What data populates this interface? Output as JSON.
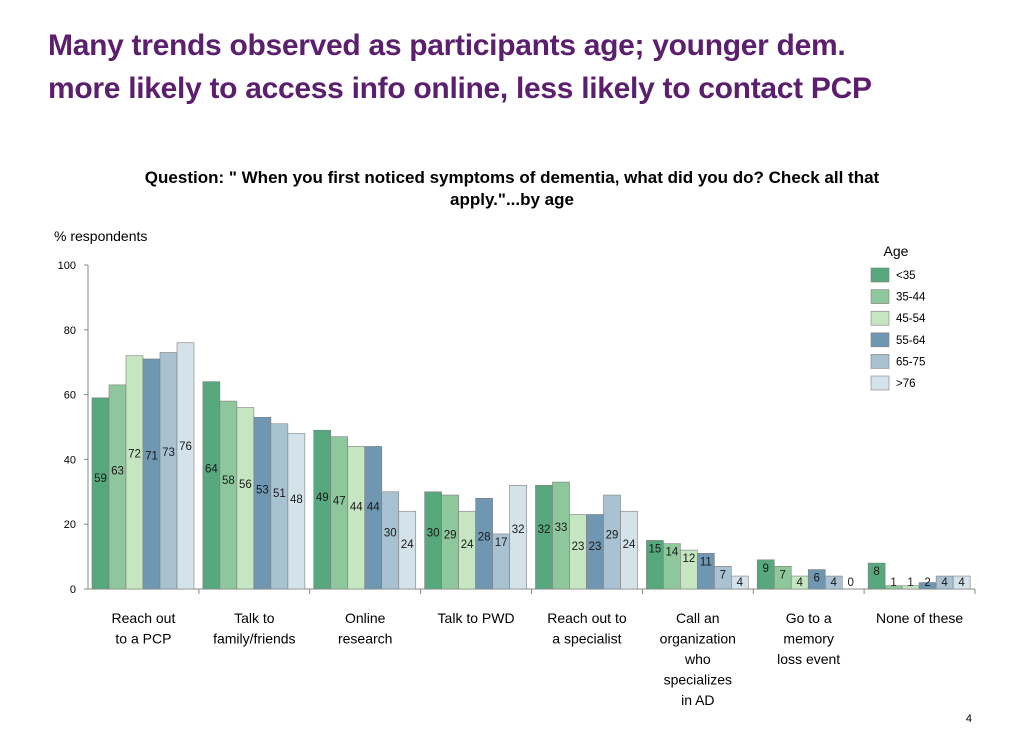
{
  "slide": {
    "title_line1": "Many trends observed as participants age; younger dem.",
    "title_line2": "more likely to access info online, less likely to contact PCP",
    "page_number": "4"
  },
  "chart_data": {
    "type": "bar",
    "title": "Question: \" When you first noticed symptoms of dementia, what did you do? Check all that apply.\"...by age",
    "title_lines": [
      "Question: \" When you first noticed symptoms of dementia, what did you do? Check all that",
      "apply.\"...by age"
    ],
    "ylabel": "% respondents",
    "ylim": [
      0,
      100
    ],
    "yticks": [
      0,
      20,
      40,
      60,
      80,
      100
    ],
    "legend_title": "Age",
    "legend_position": "top-right",
    "categories": [
      [
        "Reach out",
        "to a PCP"
      ],
      [
        "Talk to",
        "family/friends"
      ],
      [
        "Online",
        "research"
      ],
      [
        "Talk to PWD"
      ],
      [
        "Reach out to",
        "a specialist"
      ],
      [
        "Call an",
        "organization",
        "who",
        "specializes",
        "in AD"
      ],
      [
        "Go to a",
        "memory",
        "loss event"
      ],
      [
        "None of these"
      ]
    ],
    "series": [
      {
        "name": "<35",
        "color": "#57a87c",
        "values": [
          59,
          64,
          49,
          30,
          32,
          15,
          9,
          8
        ]
      },
      {
        "name": "35-44",
        "color": "#8fc79c",
        "values": [
          63,
          58,
          47,
          29,
          33,
          14,
          7,
          1
        ]
      },
      {
        "name": "45-54",
        "color": "#c5e6c0",
        "values": [
          72,
          56,
          44,
          24,
          23,
          12,
          4,
          1
        ]
      },
      {
        "name": "55-64",
        "color": "#6f97b1",
        "values": [
          71,
          53,
          44,
          28,
          23,
          11,
          6,
          2
        ]
      },
      {
        "name": "65-75",
        "color": "#a9c2d2",
        "values": [
          73,
          51,
          30,
          17,
          29,
          7,
          4,
          4
        ]
      },
      {
        "name": ">76",
        "color": "#d4e2ea",
        "values": [
          76,
          48,
          24,
          32,
          24,
          4,
          0,
          4
        ]
      }
    ]
  }
}
